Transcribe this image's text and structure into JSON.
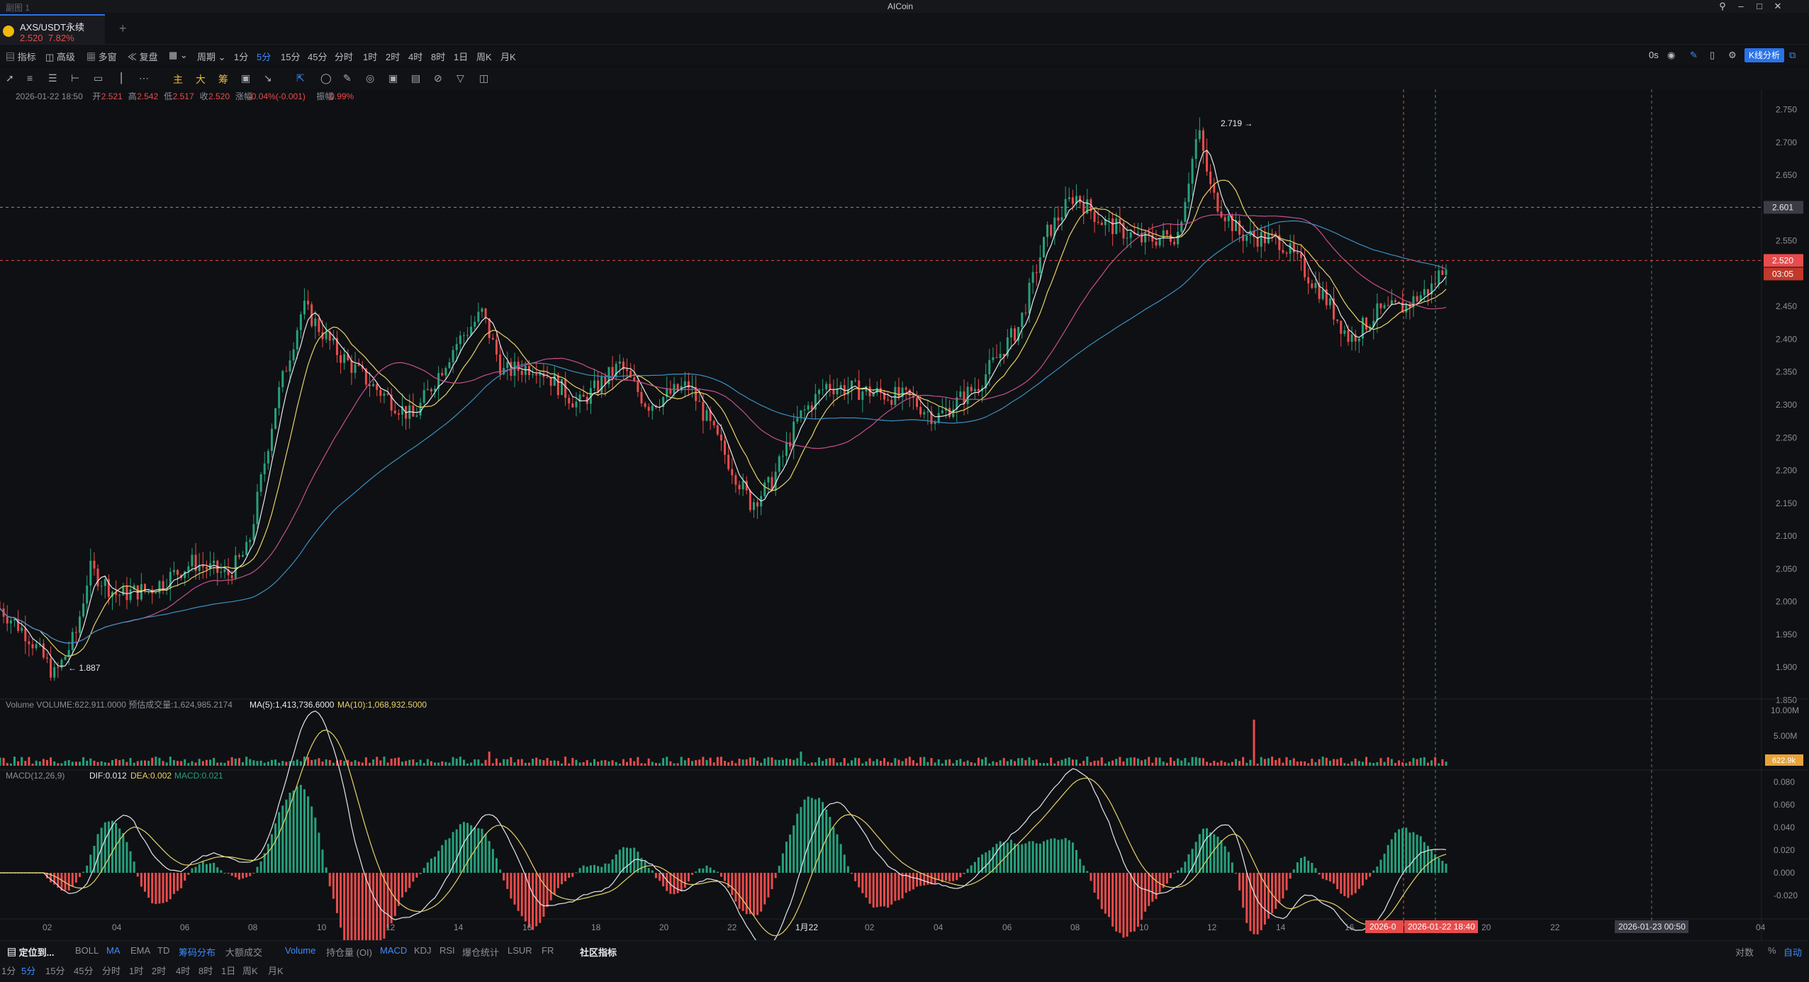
{
  "window": {
    "title_left": "副图 1",
    "title": "AICoin"
  },
  "tab": {
    "symbol": "AXS/USDT永续",
    "price": "2.520",
    "change": "7.82%"
  },
  "toolbar": {
    "items": [
      "指标",
      "高级",
      "多窗",
      "复盘",
      "周期"
    ],
    "periods": [
      "1分",
      "5分",
      "15分",
      "45分",
      "分时",
      "1时",
      "2时",
      "4时",
      "8时",
      "1日",
      "周K",
      "月K"
    ],
    "active_period": "5分",
    "right_text": "0s",
    "kline_button": "K线分析"
  },
  "drawtools": {
    "labels": [
      "主",
      "大",
      "筹"
    ]
  },
  "ohlc_line": {
    "date": "2026-01-22 18:50",
    "open_label": "开",
    "open": "2.521",
    "high_label": "高",
    "high": "2.542",
    "low_label": "低",
    "low": "2.517",
    "close_label": "收",
    "close": "2.520",
    "chg_label": "涨幅",
    "chg": "-0.04%(-0.001)",
    "amp_label": "振幅",
    "amp": "0.99%"
  },
  "chart_data": {
    "type": "candlestick",
    "price_axis": [
      "2.750",
      "2.700",
      "2.650",
      "2.600",
      "2.550",
      "2.500",
      "2.450",
      "2.400",
      "2.350",
      "2.300",
      "2.250",
      "2.200",
      "2.150",
      "2.100",
      "2.050",
      "2.000",
      "1.950",
      "1.900",
      "1.850"
    ],
    "ylim": [
      1.83,
      2.77
    ],
    "x_axis": [
      "02",
      "04",
      "06",
      "08",
      "10",
      "12",
      "14",
      "16",
      "18",
      "20",
      "22",
      "1月22",
      "02",
      "04",
      "06",
      "08",
      "10",
      "12",
      "14",
      "16",
      "20",
      "22",
      "04"
    ],
    "price_path": [
      [
        0,
        1.99
      ],
      [
        0.02,
        1.95
      ],
      [
        0.04,
        1.887
      ],
      [
        0.055,
        1.95
      ],
      [
        0.065,
        2.05
      ],
      [
        0.085,
        2.01
      ],
      [
        0.11,
        2.02
      ],
      [
        0.14,
        2.06
      ],
      [
        0.165,
        2.04
      ],
      [
        0.18,
        2.08
      ],
      [
        0.2,
        2.3
      ],
      [
        0.22,
        2.45
      ],
      [
        0.245,
        2.38
      ],
      [
        0.27,
        2.33
      ],
      [
        0.3,
        2.28
      ],
      [
        0.33,
        2.39
      ],
      [
        0.35,
        2.44
      ],
      [
        0.365,
        2.35
      ],
      [
        0.39,
        2.36
      ],
      [
        0.42,
        2.3
      ],
      [
        0.45,
        2.36
      ],
      [
        0.47,
        2.3
      ],
      [
        0.5,
        2.33
      ],
      [
        0.52,
        2.25
      ],
      [
        0.545,
        2.15
      ],
      [
        0.56,
        2.18
      ],
      [
        0.58,
        2.28
      ],
      [
        0.6,
        2.33
      ],
      [
        0.63,
        2.32
      ],
      [
        0.66,
        2.31
      ],
      [
        0.68,
        2.28
      ],
      [
        0.71,
        2.33
      ],
      [
        0.74,
        2.42
      ],
      [
        0.76,
        2.56
      ],
      [
        0.78,
        2.62
      ],
      [
        0.8,
        2.58
      ],
      [
        0.83,
        2.55
      ],
      [
        0.855,
        2.56
      ],
      [
        0.87,
        2.719
      ],
      [
        0.88,
        2.62
      ],
      [
        0.9,
        2.56
      ],
      [
        0.93,
        2.55
      ],
      [
        0.96,
        2.47
      ],
      [
        0.98,
        2.4
      ],
      [
        1.0,
        2.44
      ],
      [
        1.02,
        2.45
      ],
      [
        1.04,
        2.48
      ],
      [
        1.05,
        2.52
      ]
    ],
    "high_label": "2.719",
    "low_label": "1.887",
    "current_price": "2.520",
    "countdown": "03:05",
    "crosshair_price": "2.601",
    "volume": {
      "label": "Volume",
      "vol": "VOLUME:622,911.0000",
      "pred": "预估成交量:1,624,985.2174",
      "ma5": "MA(5):1,413,736.6000",
      "ma10": "MA(10):1,068,932.5000",
      "axis": [
        "10.00M",
        "5.00M"
      ],
      "current": "622.9k"
    },
    "macd": {
      "label": "MACD(12,26,9)",
      "dif": "DIF:0.012",
      "dea": "DEA:0.002",
      "macd": "MACD:0.021",
      "axis": [
        "0.080",
        "0.060",
        "0.040",
        "0.020",
        "0.000",
        "-0.020"
      ]
    },
    "time_markers": [
      "2026-0",
      "2026-01-22 18:40",
      "2026-01-23 00:50"
    ]
  },
  "bottom": {
    "locate": "定位到...",
    "indicators": [
      "BOLL",
      "MA",
      "EMA",
      "TD",
      "筹码分布",
      "大额成交"
    ],
    "sub_indicators": [
      "Volume",
      "持仓量 (OI)",
      "MACD",
      "KDJ",
      "RSI",
      "爆仓统计",
      "LSUR",
      "FR"
    ],
    "community": "社区指标",
    "right": [
      "对数",
      "%",
      "自动"
    ],
    "periods": [
      "1分",
      "5分",
      "15分",
      "45分",
      "分时",
      "1时",
      "2时",
      "4时",
      "8时",
      "1日",
      "周K",
      "月K"
    ],
    "active_period": "5分"
  },
  "colors": {
    "up": "#26a17b",
    "down": "#e84c4c",
    "accent": "#2a72e8",
    "ma_yellow": "#e8d36a",
    "ma_pink": "#c4508f",
    "ma_blue": "#3b8fc4"
  }
}
